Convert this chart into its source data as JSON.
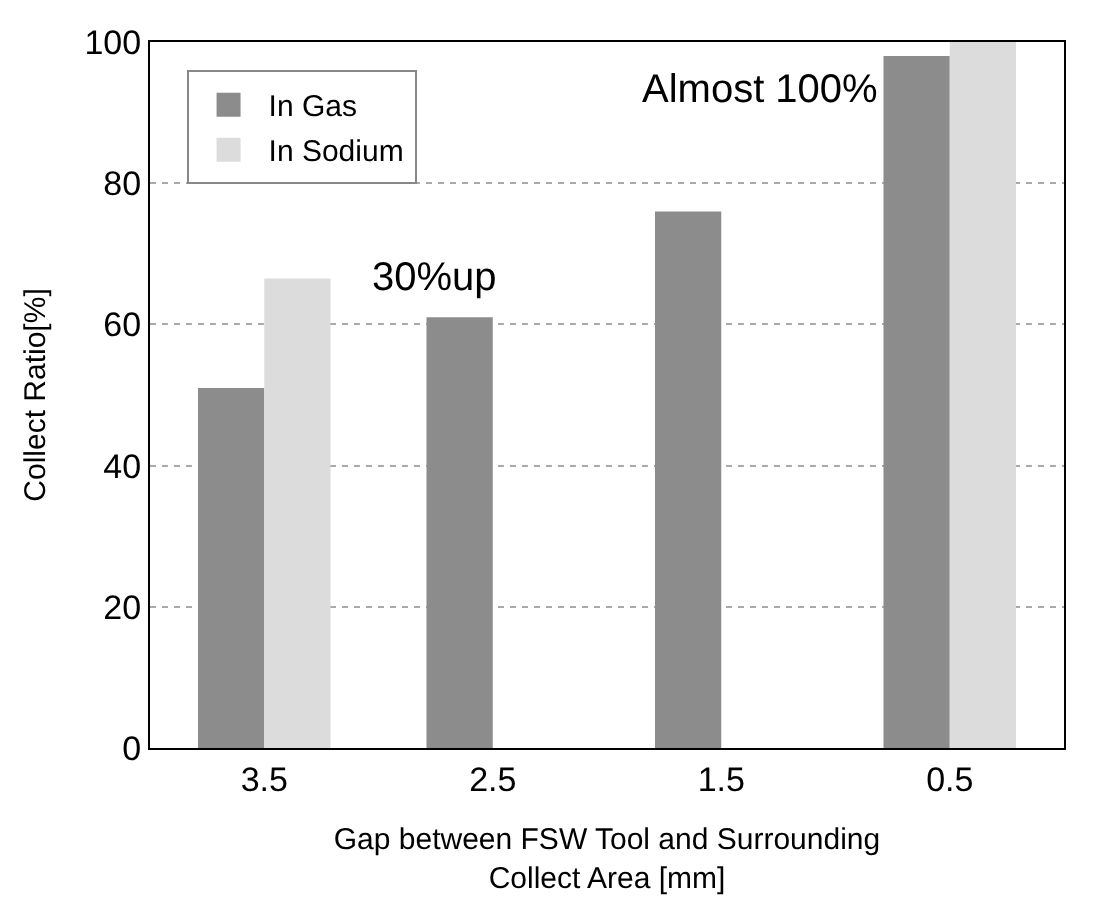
{
  "chart_data": {
    "type": "bar",
    "xlabel": "Gap between FSW Tool and Surrounding\nCollect Area [mm]",
    "ylabel": "Collect Ratio[%]",
    "categories": [
      "3.5",
      "2.5",
      "1.5",
      "0.5"
    ],
    "series": [
      {
        "name": "In Gas",
        "color": "#8c8c8c",
        "values": [
          51,
          61,
          76,
          98
        ]
      },
      {
        "name": "In Sodium",
        "color": "#dcdcdc",
        "values": [
          66.5,
          null,
          null,
          100
        ]
      }
    ],
    "ylim": [
      0,
      100
    ],
    "yticks": [
      0,
      20,
      40,
      60,
      80,
      100
    ],
    "grid": "y",
    "legend": "top left",
    "annotations": [
      {
        "text": "30%up",
        "x": "3.5",
        "y": 66.5
      },
      {
        "text": "Almost 100%",
        "x": "0.5",
        "y": 100
      }
    ]
  }
}
